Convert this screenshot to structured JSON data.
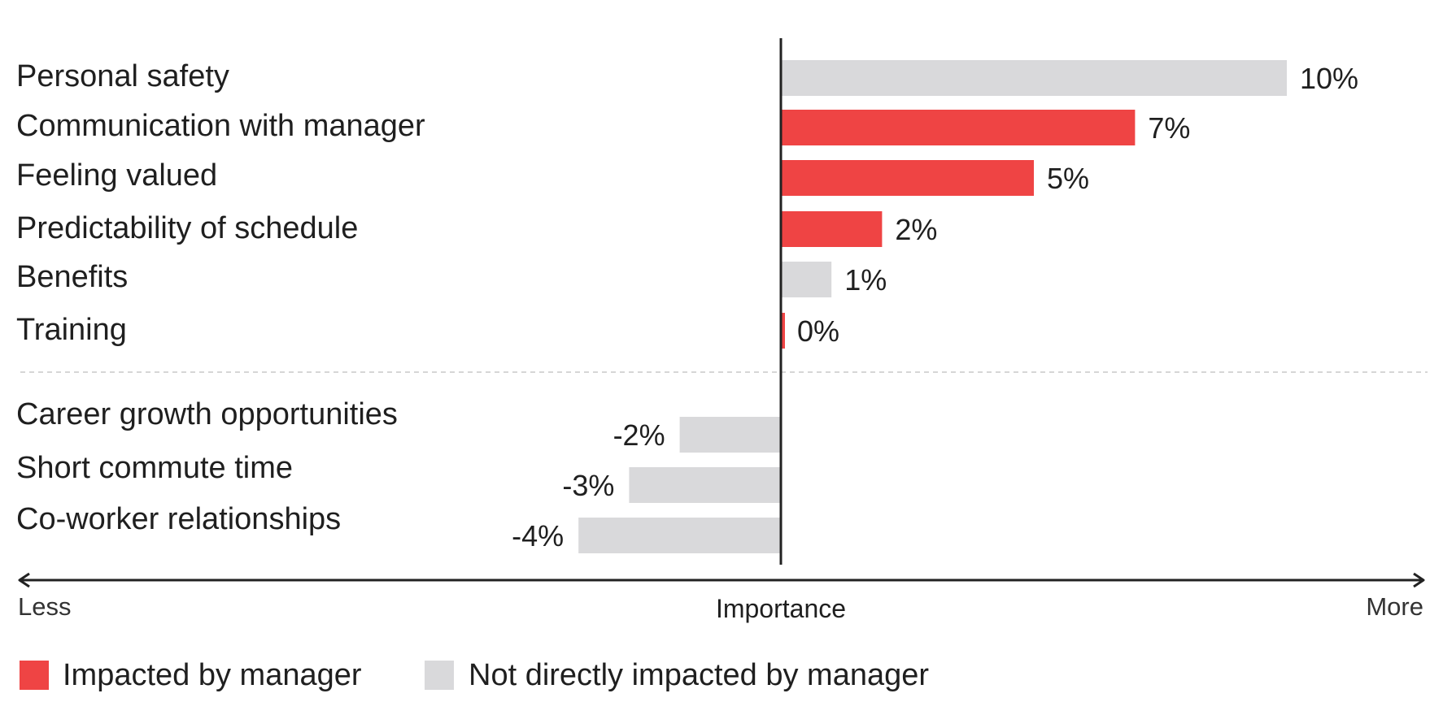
{
  "chart_data": {
    "type": "bar",
    "orientation": "horizontal",
    "categories": [
      "Personal safety",
      "Communication with manager",
      "Feeling valued",
      "Predictability of schedule",
      "Benefits",
      "Training",
      "Career growth opportunities",
      "Short commute time",
      "Co-worker relationships"
    ],
    "values": [
      10,
      7,
      5,
      2,
      1,
      0,
      -2,
      -3,
      -4
    ],
    "value_labels": [
      "10%",
      "7%",
      "5%",
      "2%",
      "1%",
      "0%",
      "-2%",
      "-3%",
      "-4%"
    ],
    "impacted_by_manager": [
      false,
      true,
      true,
      true,
      false,
      true,
      false,
      false,
      false
    ],
    "xlim": [
      -15.5,
      12.5
    ],
    "axis": {
      "title": "Importance",
      "left_label": "Less",
      "right_label": "More"
    },
    "legend": [
      {
        "name": "Impacted by manager",
        "color": "#ef4444"
      },
      {
        "name": "Not directly impacted by manager",
        "color": "#d9d9db"
      }
    ],
    "divider_after_index": 5,
    "legend_placement": "bottom-left"
  },
  "colors": {
    "impacted": "#ef4444",
    "not_impacted": "#d9d9db",
    "axis": "#222222",
    "divider": "#d6d6d6"
  }
}
